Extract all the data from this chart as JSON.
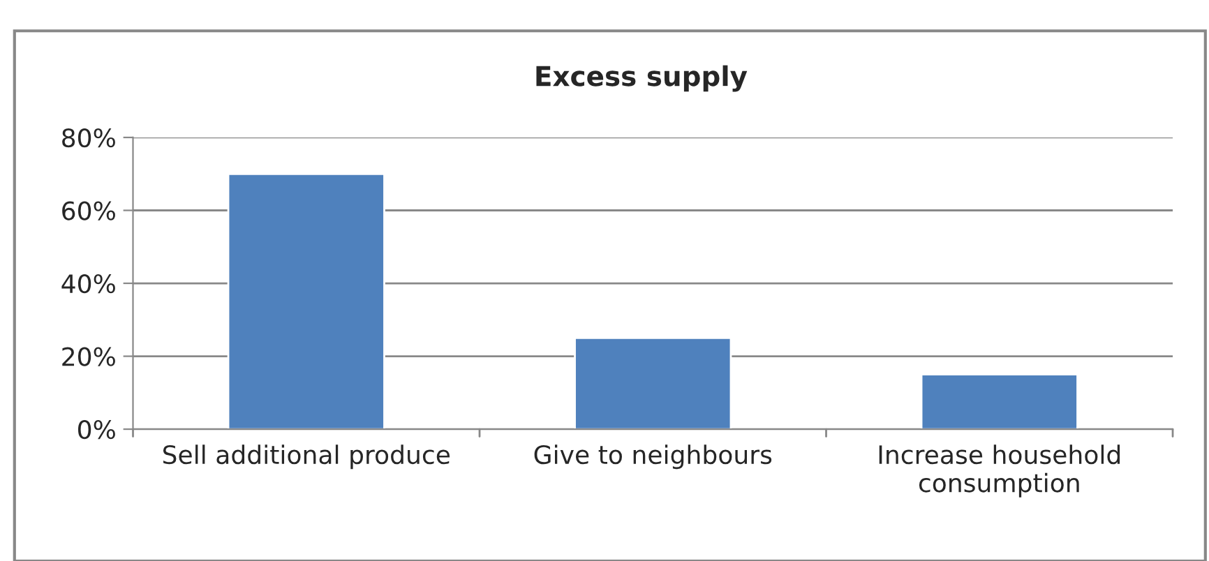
{
  "chart_data": {
    "type": "bar",
    "title": "Excess supply",
    "categories": [
      "Sell additional produce",
      "Give to neighbours",
      "Increase household\nconsumption"
    ],
    "values": [
      70,
      25,
      15
    ],
    "color": "#4f81bd",
    "ylim": [
      0,
      80
    ],
    "yticks": [
      {
        "value": 0,
        "label": "0%"
      },
      {
        "value": 20,
        "label": "20%"
      },
      {
        "value": 40,
        "label": "40%"
      },
      {
        "value": 60,
        "label": "60%"
      },
      {
        "value": 80,
        "label": "80%"
      }
    ],
    "grid": "y",
    "legend": false
  }
}
